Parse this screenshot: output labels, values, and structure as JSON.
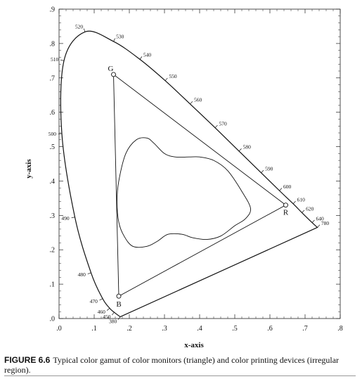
{
  "figure": {
    "number": "FIGURE 6.6",
    "caption": "Typical color gamut of color monitors (triangle) and color printing devices (irregular region)."
  },
  "chart_data": {
    "type": "scatter",
    "xlabel": "x-axis",
    "ylabel": "y-axis",
    "xlim": [
      0,
      0.8
    ],
    "ylim": [
      0,
      0.9
    ],
    "x_ticks": [
      ".0",
      ".1",
      ".2",
      ".3",
      ".4",
      ".5",
      ".6",
      ".7",
      ".8"
    ],
    "y_ticks": [
      ".0",
      ".1",
      ".2",
      ".3",
      ".4",
      ".5",
      ".6",
      ".7",
      ".8",
      ".9"
    ],
    "spectral_locus": {
      "labels": [
        {
          "nm": "380",
          "x": 0.174,
          "y": 0.005
        },
        {
          "nm": "450",
          "x": 0.157,
          "y": 0.018
        },
        {
          "nm": "460",
          "x": 0.144,
          "y": 0.03
        },
        {
          "nm": "470",
          "x": 0.124,
          "y": 0.058
        },
        {
          "nm": "480",
          "x": 0.091,
          "y": 0.133
        },
        {
          "nm": "490",
          "x": 0.045,
          "y": 0.295
        },
        {
          "nm": "500",
          "x": 0.008,
          "y": 0.538
        },
        {
          "nm": "510",
          "x": 0.014,
          "y": 0.75
        },
        {
          "nm": "520",
          "x": 0.074,
          "y": 0.834
        },
        {
          "nm": "530",
          "x": 0.155,
          "y": 0.806
        },
        {
          "nm": "540",
          "x": 0.23,
          "y": 0.754
        },
        {
          "nm": "550",
          "x": 0.302,
          "y": 0.692
        },
        {
          "nm": "560",
          "x": 0.373,
          "y": 0.624
        },
        {
          "nm": "570",
          "x": 0.444,
          "y": 0.555
        },
        {
          "nm": "580",
          "x": 0.512,
          "y": 0.487
        },
        {
          "nm": "590",
          "x": 0.575,
          "y": 0.424
        },
        {
          "nm": "600",
          "x": 0.627,
          "y": 0.372
        },
        {
          "nm": "610",
          "x": 0.666,
          "y": 0.334
        },
        {
          "nm": "620",
          "x": 0.691,
          "y": 0.308
        },
        {
          "nm": "640",
          "x": 0.72,
          "y": 0.279
        },
        {
          "nm": "780",
          "x": 0.735,
          "y": 0.265
        }
      ]
    },
    "monitor_gamut": {
      "vertices": [
        {
          "label": "R",
          "x": 0.645,
          "y": 0.33
        },
        {
          "label": "G",
          "x": 0.155,
          "y": 0.71
        },
        {
          "label": "B",
          "x": 0.17,
          "y": 0.065
        }
      ]
    },
    "printer_gamut": {
      "points": [
        [
          0.17,
          0.4
        ],
        [
          0.19,
          0.48
        ],
        [
          0.22,
          0.52
        ],
        [
          0.25,
          0.525
        ],
        [
          0.27,
          0.51
        ],
        [
          0.3,
          0.48
        ],
        [
          0.33,
          0.47
        ],
        [
          0.37,
          0.47
        ],
        [
          0.4,
          0.47
        ],
        [
          0.44,
          0.46
        ],
        [
          0.48,
          0.43
        ],
        [
          0.52,
          0.37
        ],
        [
          0.545,
          0.32
        ],
        [
          0.53,
          0.29
        ],
        [
          0.5,
          0.27
        ],
        [
          0.46,
          0.24
        ],
        [
          0.42,
          0.23
        ],
        [
          0.38,
          0.235
        ],
        [
          0.35,
          0.245
        ],
        [
          0.31,
          0.245
        ],
        [
          0.28,
          0.225
        ],
        [
          0.25,
          0.21
        ],
        [
          0.21,
          0.21
        ],
        [
          0.185,
          0.24
        ],
        [
          0.17,
          0.28
        ],
        [
          0.165,
          0.34
        ]
      ]
    }
  }
}
